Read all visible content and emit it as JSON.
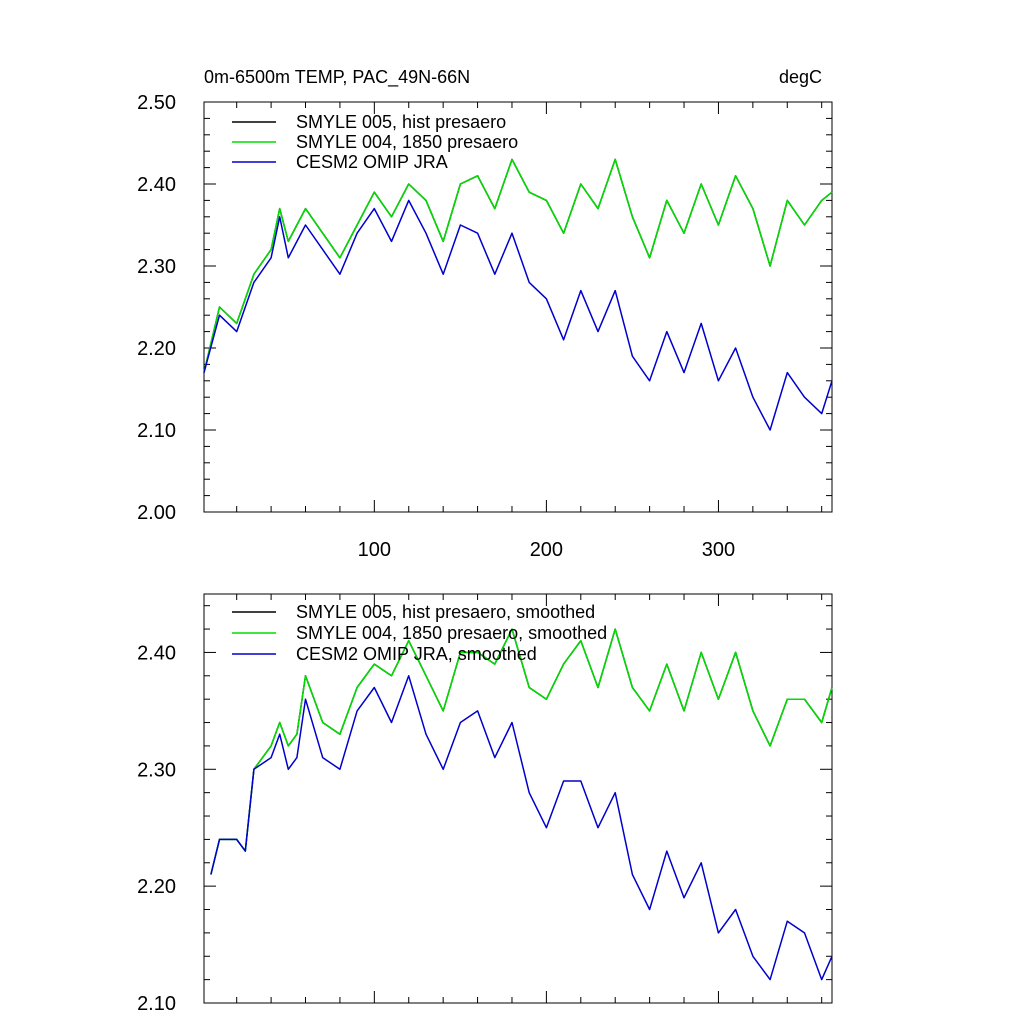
{
  "chart_data": [
    {
      "type": "line",
      "title": "0m-6500m TEMP, PAC_49N-66N",
      "units": "degC",
      "xlabel": "",
      "ylabel": "",
      "xlim": [
        1,
        366
      ],
      "ylim": [
        2.0,
        2.5
      ],
      "x_ticks": [
        100,
        200,
        300
      ],
      "y_ticks": [
        2.0,
        2.1,
        2.2,
        2.3,
        2.4,
        2.5
      ],
      "y_tick_labels": [
        "2.00",
        "2.10",
        "2.20",
        "2.30",
        "2.40",
        "2.50"
      ],
      "legend_position": "top-left",
      "series": [
        {
          "name": "SMYLE 005, hist presaero",
          "color": "#000000",
          "x": [
            1,
            10,
            20,
            30,
            40,
            45,
            50,
            60,
            70,
            80,
            90,
            100,
            110,
            120,
            130,
            140,
            150,
            160,
            170,
            180,
            190,
            200,
            210,
            220,
            230,
            240,
            250,
            260,
            270,
            280,
            290,
            300,
            310,
            320,
            330,
            340,
            350,
            360,
            366
          ],
          "values": [
            2.17,
            2.25,
            2.23,
            2.29,
            2.32,
            2.37,
            2.33,
            2.37,
            2.34,
            2.31,
            2.35,
            2.39,
            2.36,
            2.4,
            2.38,
            2.33,
            2.4,
            2.41,
            2.37,
            2.43,
            2.39,
            2.38,
            2.34,
            2.4,
            2.37,
            2.43,
            2.36,
            2.31,
            2.38,
            2.34,
            2.4,
            2.35,
            2.41,
            2.37,
            2.3,
            2.38,
            2.35,
            2.38,
            2.39
          ]
        },
        {
          "name": "SMYLE 004, 1850 presaero",
          "color": "#00dd00",
          "x": [
            1,
            10,
            20,
            30,
            40,
            45,
            50,
            60,
            70,
            80,
            90,
            100,
            110,
            120,
            130,
            140,
            150,
            160,
            170,
            180,
            190,
            200,
            210,
            220,
            230,
            240,
            250,
            260,
            270,
            280,
            290,
            300,
            310,
            320,
            330,
            340,
            350,
            360,
            366
          ],
          "values": [
            2.17,
            2.25,
            2.23,
            2.29,
            2.32,
            2.37,
            2.33,
            2.37,
            2.34,
            2.31,
            2.35,
            2.39,
            2.36,
            2.4,
            2.38,
            2.33,
            2.4,
            2.41,
            2.37,
            2.43,
            2.39,
            2.38,
            2.34,
            2.4,
            2.37,
            2.43,
            2.36,
            2.31,
            2.38,
            2.34,
            2.4,
            2.35,
            2.41,
            2.37,
            2.3,
            2.38,
            2.35,
            2.38,
            2.39
          ]
        },
        {
          "name": "CESM2 OMIP JRA",
          "color": "#0000cc",
          "x": [
            1,
            10,
            20,
            30,
            40,
            45,
            50,
            60,
            70,
            80,
            90,
            100,
            110,
            120,
            130,
            140,
            150,
            160,
            170,
            180,
            190,
            200,
            210,
            220,
            230,
            240,
            250,
            260,
            270,
            280,
            290,
            300,
            310,
            320,
            330,
            340,
            350,
            360,
            366
          ],
          "values": [
            2.17,
            2.24,
            2.22,
            2.28,
            2.31,
            2.36,
            2.31,
            2.35,
            2.32,
            2.29,
            2.34,
            2.37,
            2.33,
            2.38,
            2.34,
            2.29,
            2.35,
            2.34,
            2.29,
            2.34,
            2.28,
            2.26,
            2.21,
            2.27,
            2.22,
            2.27,
            2.19,
            2.16,
            2.22,
            2.17,
            2.23,
            2.16,
            2.2,
            2.14,
            2.1,
            2.17,
            2.14,
            2.12,
            2.16
          ]
        }
      ]
    },
    {
      "type": "line",
      "title": "",
      "xlabel": "",
      "ylabel": "",
      "xlim": [
        1,
        366
      ],
      "ylim": [
        2.1,
        2.45
      ],
      "x_ticks": [
        100,
        200,
        300
      ],
      "y_ticks": [
        2.1,
        2.2,
        2.3,
        2.4
      ],
      "y_tick_labels": [
        "2.10",
        "2.20",
        "2.30",
        "2.40"
      ],
      "legend_position": "top-left",
      "series": [
        {
          "name": "SMYLE 005, hist presaero, smoothed",
          "color": "#000000",
          "x": [
            5,
            10,
            20,
            25,
            30,
            40,
            45,
            50,
            55,
            60,
            70,
            80,
            90,
            100,
            110,
            120,
            130,
            140,
            150,
            160,
            170,
            180,
            190,
            200,
            210,
            220,
            230,
            240,
            250,
            260,
            270,
            280,
            290,
            300,
            310,
            320,
            330,
            340,
            350,
            360,
            366
          ],
          "values": [
            2.21,
            2.24,
            2.24,
            2.23,
            2.3,
            2.32,
            2.34,
            2.32,
            2.33,
            2.38,
            2.34,
            2.33,
            2.37,
            2.39,
            2.38,
            2.41,
            2.38,
            2.35,
            2.4,
            2.4,
            2.39,
            2.42,
            2.37,
            2.36,
            2.39,
            2.41,
            2.37,
            2.42,
            2.37,
            2.35,
            2.39,
            2.35,
            2.4,
            2.36,
            2.4,
            2.35,
            2.32,
            2.36,
            2.36,
            2.34,
            2.37
          ]
        },
        {
          "name": "SMYLE 004, 1850 presaero, smoothed",
          "color": "#00dd00",
          "x": [
            5,
            10,
            20,
            25,
            30,
            40,
            45,
            50,
            55,
            60,
            70,
            80,
            90,
            100,
            110,
            120,
            130,
            140,
            150,
            160,
            170,
            180,
            190,
            200,
            210,
            220,
            230,
            240,
            250,
            260,
            270,
            280,
            290,
            300,
            310,
            320,
            330,
            340,
            350,
            360,
            366
          ],
          "values": [
            2.21,
            2.24,
            2.24,
            2.23,
            2.3,
            2.32,
            2.34,
            2.32,
            2.33,
            2.38,
            2.34,
            2.33,
            2.37,
            2.39,
            2.38,
            2.41,
            2.38,
            2.35,
            2.4,
            2.4,
            2.39,
            2.42,
            2.37,
            2.36,
            2.39,
            2.41,
            2.37,
            2.42,
            2.37,
            2.35,
            2.39,
            2.35,
            2.4,
            2.36,
            2.4,
            2.35,
            2.32,
            2.36,
            2.36,
            2.34,
            2.37
          ]
        },
        {
          "name": "CESM2 OMIP JRA, smoothed",
          "color": "#0000cc",
          "x": [
            5,
            10,
            20,
            25,
            30,
            40,
            45,
            50,
            55,
            60,
            70,
            80,
            90,
            100,
            110,
            120,
            130,
            140,
            150,
            160,
            170,
            180,
            190,
            200,
            210,
            220,
            230,
            240,
            250,
            260,
            270,
            280,
            290,
            300,
            310,
            320,
            330,
            340,
            350,
            360,
            366
          ],
          "values": [
            2.21,
            2.24,
            2.24,
            2.23,
            2.3,
            2.31,
            2.33,
            2.3,
            2.31,
            2.36,
            2.31,
            2.3,
            2.35,
            2.37,
            2.34,
            2.38,
            2.33,
            2.3,
            2.34,
            2.35,
            2.31,
            2.34,
            2.28,
            2.25,
            2.29,
            2.29,
            2.25,
            2.28,
            2.21,
            2.18,
            2.23,
            2.19,
            2.22,
            2.16,
            2.18,
            2.14,
            2.12,
            2.17,
            2.16,
            2.12,
            2.14
          ]
        }
      ]
    }
  ]
}
